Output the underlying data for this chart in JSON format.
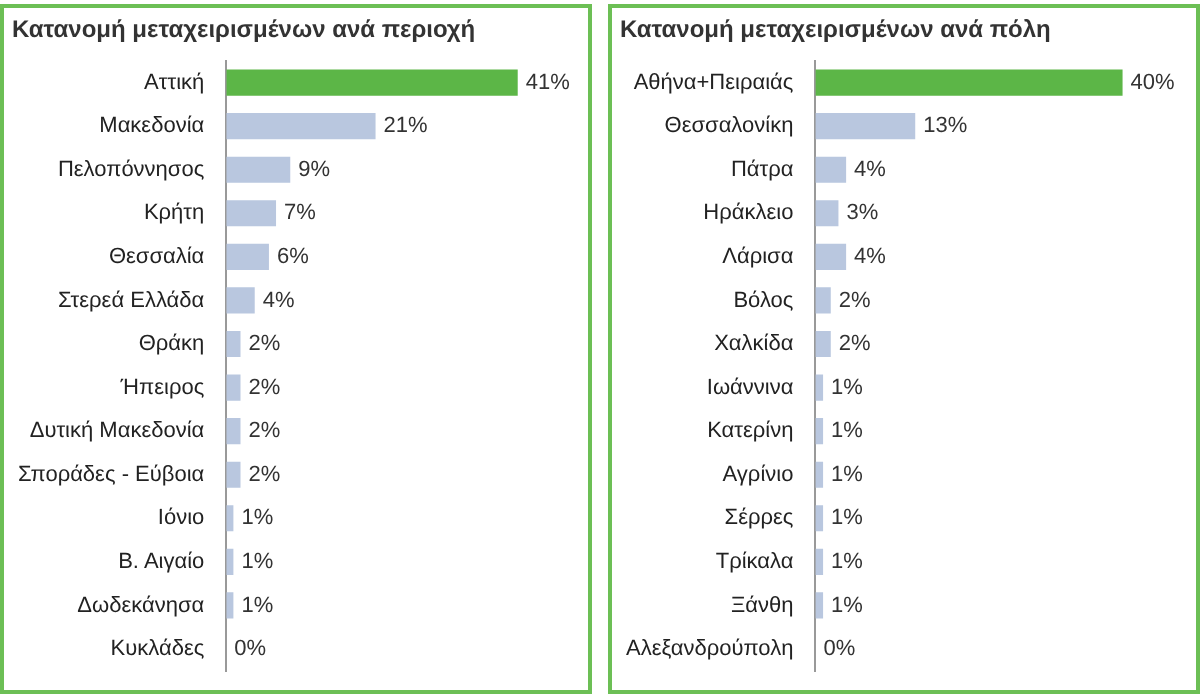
{
  "chart_data": [
    {
      "type": "bar",
      "orientation": "horizontal",
      "title": "Κατανομή μεταχειρισμένων ανά περιοχή",
      "categories": [
        "Αττική",
        "Μακεδονία",
        "Πελοπόννησος",
        "Κρήτη",
        "Θεσσαλία",
        "Στερεά Ελλάδα",
        "Θράκη",
        "Ήπειρος",
        "Δυτική Μακεδονία",
        "Σποράδες - Εύβοια",
        "Ιόνιο",
        "Β. Αιγαίο",
        "Δωδεκάνησα",
        "Κυκλάδες"
      ],
      "values": [
        41,
        21,
        9,
        7,
        6,
        4,
        2,
        2,
        2,
        2,
        1,
        1,
        1,
        0
      ],
      "colors": [
        "#5cb647",
        "#b9c7df",
        "#b9c7df",
        "#b9c7df",
        "#b9c7df",
        "#b9c7df",
        "#b9c7df",
        "#b9c7df",
        "#b9c7df",
        "#b9c7df",
        "#b9c7df",
        "#b9c7df",
        "#b9c7df",
        "#b9c7df"
      ],
      "value_labels": [
        "41%",
        "21%",
        "9%",
        "7%",
        "6%",
        "4%",
        "2%",
        "2%",
        "2%",
        "2%",
        "1%",
        "1%",
        "1%",
        "0%"
      ],
      "legend": false,
      "tick_labels": "y"
    },
    {
      "type": "bar",
      "orientation": "horizontal",
      "title": "Κατανομή μεταχειρισμένων ανά πόλη",
      "categories": [
        "Αθήνα+Πειραιάς",
        "Θεσσαλονίκη",
        "Πάτρα",
        "Ηράκλειο",
        "Λάρισα",
        "Βόλος",
        "Χαλκίδα",
        "Ιωάννινα",
        "Κατερίνη",
        "Αγρίνιο",
        "Σέρρες",
        "Τρίκαλα",
        "Ξάνθη",
        "Αλεξανδρούπολη"
      ],
      "values": [
        40,
        13,
        4,
        3,
        4,
        2,
        2,
        1,
        1,
        1,
        1,
        1,
        1,
        0
      ],
      "colors": [
        "#5cb647",
        "#b9c7df",
        "#b9c7df",
        "#b9c7df",
        "#b9c7df",
        "#b9c7df",
        "#b9c7df",
        "#b9c7df",
        "#b9c7df",
        "#b9c7df",
        "#b9c7df",
        "#b9c7df",
        "#b9c7df",
        "#b9c7df"
      ],
      "value_labels": [
        "40%",
        "13%",
        "4%",
        "3%",
        "4%",
        "2%",
        "2%",
        "1%",
        "1%",
        "1%",
        "1%",
        "1%",
        "1%",
        "0%"
      ],
      "legend": false,
      "tick_labels": "y"
    }
  ]
}
